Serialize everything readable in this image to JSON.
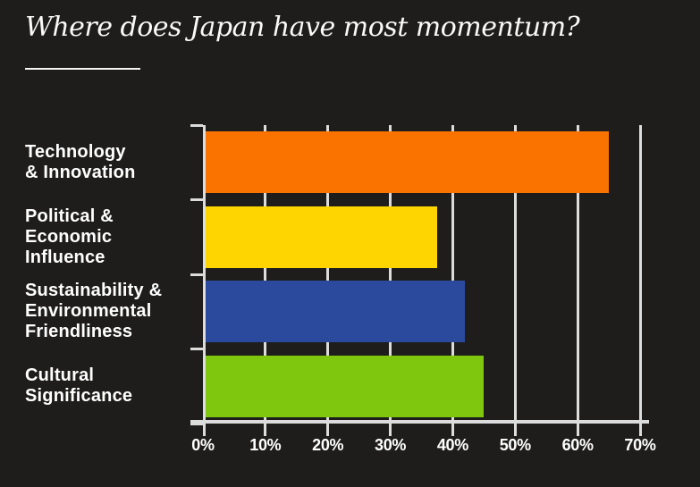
{
  "page": {
    "background_color": "#1e1d1b"
  },
  "header": {
    "title": "Where does Japan have most momentum?"
  },
  "chart_data": {
    "type": "bar",
    "orientation": "horizontal",
    "title": "Where does Japan have most momentum?",
    "categories": [
      "Technology & Innovation",
      "Political & Economic Influence",
      "Sustainability & Environmental Friendliness",
      "Cultural Significance"
    ],
    "category_label_lines": [
      [
        "Technology",
        "& Innovation"
      ],
      [
        "Political &",
        "Economic",
        "Influence"
      ],
      [
        "Sustainability &",
        "Environmental",
        "Friendliness"
      ],
      [
        "Cultural",
        "Significance"
      ]
    ],
    "values": [
      65,
      37.5,
      42,
      45
    ],
    "unit": "%",
    "bar_colors": [
      "#fa7300",
      "#ffd500",
      "#2b4a9e",
      "#7ec70e"
    ],
    "x_tick_labels": [
      "0%",
      "10%",
      "20%",
      "30%",
      "40%",
      "50%",
      "60%",
      "70%"
    ],
    "xlim": [
      0,
      70
    ],
    "grid": "vertical gridlines behind bars",
    "legend": "none",
    "axis_color": "#dcdcdc",
    "label_color": "#ffffff"
  }
}
